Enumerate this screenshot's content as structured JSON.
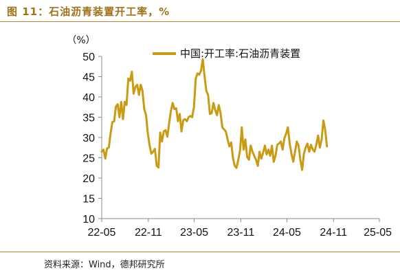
{
  "figure": {
    "title": "图 11：石油沥青装置开工率，%",
    "source": "资料来源：Wind，德邦研究所"
  },
  "colors": {
    "accent": "#c99a12",
    "rule": "#b5832a",
    "title": "#a0711a"
  },
  "chart_data": {
    "type": "line",
    "title": "",
    "unit_label": "（%）",
    "xlabel": "",
    "ylabel": "",
    "ylim": [
      10,
      50
    ],
    "yticks": [
      "10",
      "15",
      "20",
      "25",
      "30",
      "35",
      "40",
      "45",
      "50"
    ],
    "xticks": [
      "22-05",
      "22-11",
      "23-05",
      "23-11",
      "24-05",
      "24-11",
      "25-05"
    ],
    "xlim": [
      "2022-05-01",
      "2025-05-01"
    ],
    "grid": false,
    "legend_position": "top",
    "series": [
      {
        "name": "中国:开工率:石油沥青装置",
        "color": "#c99a12",
        "points": [
          [
            "2022-05-01",
            26.5
          ],
          [
            "2022-05-08",
            27.0
          ],
          [
            "2022-05-15",
            24.8
          ],
          [
            "2022-05-22",
            27.3
          ],
          [
            "2022-05-29",
            27.5
          ],
          [
            "2022-06-05",
            31.0
          ],
          [
            "2022-06-12",
            33.8
          ],
          [
            "2022-06-19",
            34.0
          ],
          [
            "2022-06-26",
            37.6
          ],
          [
            "2022-07-03",
            38.2
          ],
          [
            "2022-07-10",
            35.0
          ],
          [
            "2022-07-17",
            38.8
          ],
          [
            "2022-07-24",
            34.5
          ],
          [
            "2022-07-31",
            38.8
          ],
          [
            "2022-08-07",
            38.0
          ],
          [
            "2022-08-14",
            44.5
          ],
          [
            "2022-08-21",
            44.0
          ],
          [
            "2022-08-28",
            46.2
          ],
          [
            "2022-09-04",
            40.8
          ],
          [
            "2022-09-11",
            42.5
          ],
          [
            "2022-09-18",
            43.0
          ],
          [
            "2022-09-25",
            40.5
          ],
          [
            "2022-10-02",
            43.0
          ],
          [
            "2022-10-09",
            41.5
          ],
          [
            "2022-10-16",
            37.0
          ],
          [
            "2022-10-23",
            35.5
          ],
          [
            "2022-10-30",
            31.0
          ],
          [
            "2022-11-06",
            28.0
          ],
          [
            "2022-11-13",
            26.0
          ],
          [
            "2022-11-20",
            26.5
          ],
          [
            "2022-11-27",
            27.2
          ],
          [
            "2022-12-04",
            23.0
          ],
          [
            "2022-12-11",
            22.6
          ],
          [
            "2022-12-18",
            31.2
          ],
          [
            "2022-12-25",
            29.0
          ],
          [
            "2023-01-01",
            31.5
          ],
          [
            "2023-01-08",
            31.8
          ],
          [
            "2023-01-15",
            30.2
          ],
          [
            "2023-01-22",
            33.5
          ],
          [
            "2023-01-29",
            36.5
          ],
          [
            "2023-02-05",
            38.5
          ],
          [
            "2023-02-12",
            37.0
          ],
          [
            "2023-02-19",
            37.2
          ],
          [
            "2023-02-26",
            34.0
          ],
          [
            "2023-03-05",
            35.8
          ],
          [
            "2023-03-12",
            31.5
          ],
          [
            "2023-03-19",
            34.3
          ],
          [
            "2023-03-26",
            34.5
          ],
          [
            "2023-04-02",
            34.0
          ],
          [
            "2023-04-09",
            35.0
          ],
          [
            "2023-04-16",
            35.3
          ],
          [
            "2023-04-23",
            35.0
          ],
          [
            "2023-04-30",
            37.5
          ],
          [
            "2023-05-07",
            44.5
          ],
          [
            "2023-05-14",
            45.8
          ],
          [
            "2023-05-21",
            45.5
          ],
          [
            "2023-05-28",
            46.5
          ],
          [
            "2023-06-04",
            49.3
          ],
          [
            "2023-06-11",
            45.0
          ],
          [
            "2023-06-18",
            41.5
          ],
          [
            "2023-06-25",
            40.5
          ],
          [
            "2023-07-02",
            35.8
          ],
          [
            "2023-07-09",
            36.0
          ],
          [
            "2023-07-16",
            38.5
          ],
          [
            "2023-07-23",
            36.8
          ],
          [
            "2023-07-30",
            35.5
          ],
          [
            "2023-08-06",
            38.0
          ],
          [
            "2023-08-13",
            36.0
          ],
          [
            "2023-08-20",
            32.5
          ],
          [
            "2023-08-27",
            32.0
          ],
          [
            "2023-09-03",
            31.5
          ],
          [
            "2023-09-10",
            29.5
          ],
          [
            "2023-09-17",
            27.8
          ],
          [
            "2023-09-24",
            28.8
          ],
          [
            "2023-10-01",
            25.0
          ],
          [
            "2023-10-08",
            23.0
          ],
          [
            "2023-10-15",
            22.5
          ],
          [
            "2023-10-22",
            24.5
          ],
          [
            "2023-10-29",
            26.8
          ],
          [
            "2023-11-05",
            32.5
          ],
          [
            "2023-11-12",
            27.0
          ],
          [
            "2023-11-19",
            29.5
          ],
          [
            "2023-11-26",
            25.2
          ],
          [
            "2023-12-03",
            24.5
          ],
          [
            "2023-12-10",
            28.0
          ],
          [
            "2023-12-17",
            26.5
          ],
          [
            "2023-12-24",
            25.5
          ],
          [
            "2023-12-31",
            24.5
          ],
          [
            "2024-01-07",
            23.0
          ],
          [
            "2024-01-14",
            26.5
          ],
          [
            "2024-01-21",
            24.8
          ],
          [
            "2024-01-28",
            26.2
          ],
          [
            "2024-02-04",
            28.0
          ],
          [
            "2024-02-11",
            25.8
          ],
          [
            "2024-02-18",
            27.0
          ],
          [
            "2024-02-25",
            25.5
          ],
          [
            "2024-03-03",
            28.0
          ],
          [
            "2024-03-10",
            24.0
          ],
          [
            "2024-03-17",
            25.5
          ],
          [
            "2024-03-24",
            28.2
          ],
          [
            "2024-03-31",
            28.5
          ],
          [
            "2024-04-07",
            29.0
          ],
          [
            "2024-04-14",
            27.0
          ],
          [
            "2024-04-21",
            29.8
          ],
          [
            "2024-04-28",
            31.0
          ],
          [
            "2024-05-05",
            32.5
          ],
          [
            "2024-05-12",
            28.5
          ],
          [
            "2024-05-19",
            26.0
          ],
          [
            "2024-05-26",
            24.0
          ],
          [
            "2024-06-02",
            26.5
          ],
          [
            "2024-06-09",
            29.0
          ],
          [
            "2024-06-16",
            28.0
          ],
          [
            "2024-06-23",
            24.5
          ],
          [
            "2024-06-30",
            22.0
          ],
          [
            "2024-07-07",
            26.0
          ],
          [
            "2024-07-14",
            27.5
          ],
          [
            "2024-07-21",
            28.5
          ],
          [
            "2024-07-28",
            26.5
          ],
          [
            "2024-08-04",
            28.2
          ],
          [
            "2024-08-11",
            27.0
          ],
          [
            "2024-08-18",
            26.5
          ],
          [
            "2024-08-25",
            28.2
          ],
          [
            "2024-09-01",
            30.5
          ],
          [
            "2024-09-08",
            27.5
          ],
          [
            "2024-09-15",
            29.5
          ],
          [
            "2024-09-22",
            34.2
          ],
          [
            "2024-09-29",
            32.0
          ],
          [
            "2024-10-06",
            27.8
          ]
        ]
      }
    ]
  }
}
